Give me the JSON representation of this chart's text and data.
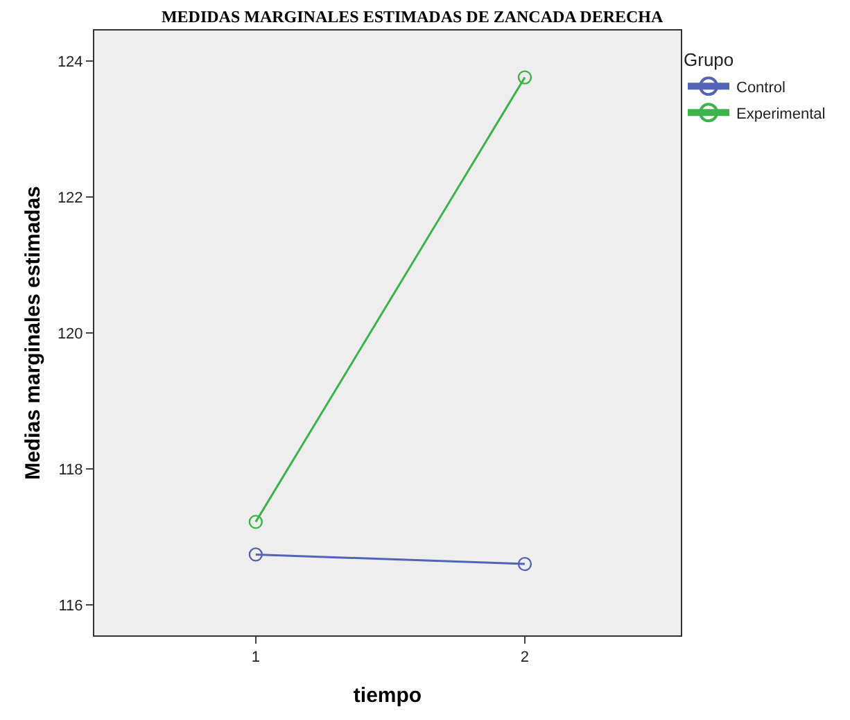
{
  "chart_data": {
    "type": "line",
    "title": "MEDIDAS MARGINALES ESTIMADAS DE ZANCADA DERECHA",
    "xlabel": "tiempo",
    "ylabel": "Medias marginales estimadas",
    "legend_title": "Grupo",
    "categories": [
      "1",
      "2"
    ],
    "series": [
      {
        "name": "Control",
        "color": "#5464b4",
        "values": [
          116.74,
          116.6
        ]
      },
      {
        "name": "Experimental",
        "color": "#3cb44b",
        "values": [
          117.22,
          123.76
        ]
      }
    ],
    "ylim": [
      115.55,
      124.45
    ],
    "yticks": [
      116,
      118,
      120,
      122,
      124
    ],
    "grid": false,
    "legend": "top right",
    "marker": "circle",
    "line_style": "solid"
  }
}
